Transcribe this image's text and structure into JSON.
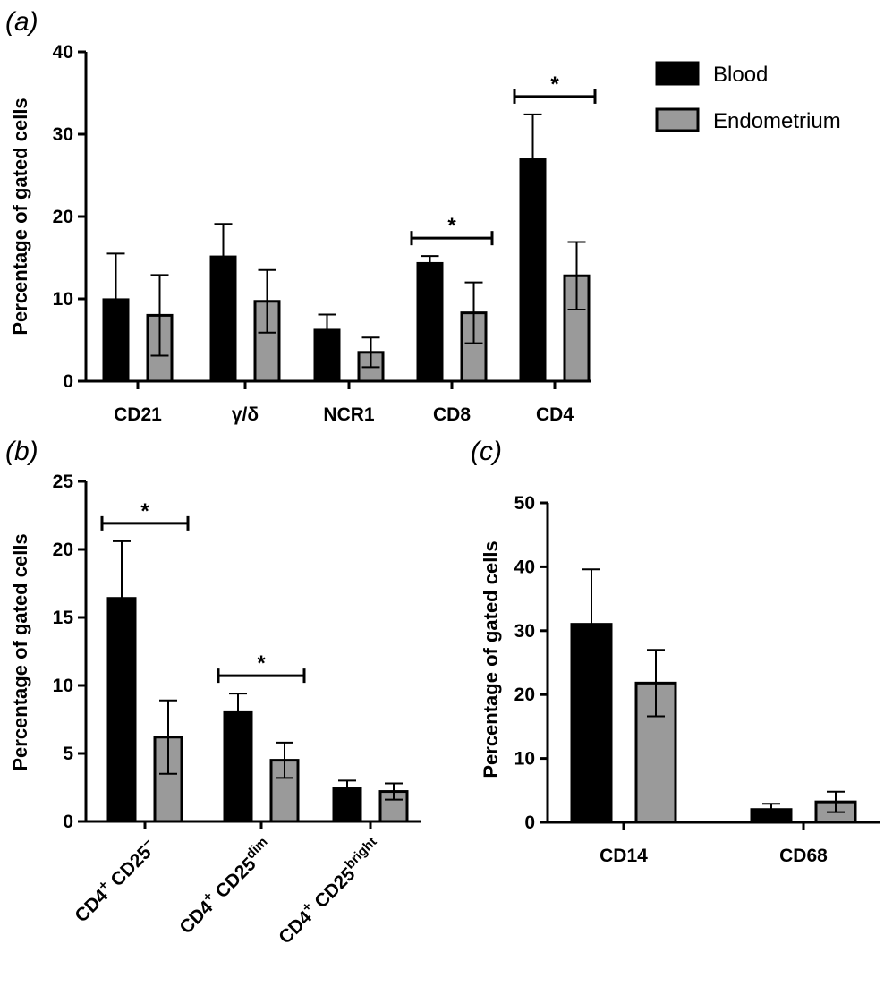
{
  "colors": {
    "blood": "#000000",
    "endometrium": "#9a9a9a",
    "axis": "#000000"
  },
  "legend": {
    "blood": "Blood",
    "endometrium": "Endometrium",
    "placement": "top-right"
  },
  "chart_data": [
    {
      "panel": "(a)",
      "type": "bar",
      "ylabel": "Percentage of gated cells",
      "ylim": [
        0,
        40
      ],
      "yticks": [
        "0",
        "10",
        "20",
        "30",
        "40"
      ],
      "categories": [
        "CD21",
        "γ/δ",
        "NCR1",
        "CD8",
        "CD4"
      ],
      "series": [
        {
          "name": "Blood",
          "values": [
            9.9,
            15.1,
            6.2,
            14.3,
            26.9
          ],
          "errors": [
            5.6,
            4.0,
            1.9,
            0.9,
            5.5
          ]
        },
        {
          "name": "Endometrium",
          "values": [
            8.0,
            9.7,
            3.5,
            8.3,
            12.8
          ],
          "errors": [
            4.9,
            3.8,
            1.8,
            3.7,
            4.1
          ]
        }
      ],
      "significance": [
        {
          "category_index": 3,
          "label": "*"
        },
        {
          "category_index": 4,
          "label": "*"
        }
      ],
      "grid": false
    },
    {
      "panel": "(b)",
      "type": "bar",
      "ylabel": "Percentage of gated cells",
      "ylim": [
        0,
        25
      ],
      "yticks": [
        "0",
        "5",
        "10",
        "15",
        "20",
        "25"
      ],
      "categories": [
        {
          "base": "CD4",
          "sup1": "+",
          "mid": " CD25",
          "sup2": "–"
        },
        {
          "base": "CD4",
          "sup1": "+",
          "mid": " CD25",
          "sup2": "dim"
        },
        {
          "base": "CD4",
          "sup1": "+",
          "mid": " CD25",
          "sup2": "bright"
        }
      ],
      "series": [
        {
          "name": "Blood",
          "values": [
            16.4,
            8.0,
            2.4
          ],
          "errors": [
            4.2,
            1.4,
            0.6
          ]
        },
        {
          "name": "Endometrium",
          "values": [
            6.2,
            4.5,
            2.2
          ],
          "errors": [
            2.7,
            1.3,
            0.6
          ],
          "errors_both_sides": true
        }
      ],
      "significance": [
        {
          "category_index": 0,
          "label": "*"
        },
        {
          "category_index": 1,
          "label": "*"
        }
      ],
      "grid": false
    },
    {
      "panel": "(c)",
      "type": "bar",
      "ylabel": "Percentage of gated cells",
      "ylim": [
        0,
        50
      ],
      "yticks": [
        "0",
        "10",
        "20",
        "30",
        "40",
        "50"
      ],
      "categories": [
        "CD14",
        "CD68"
      ],
      "series": [
        {
          "name": "Blood",
          "values": [
            31.0,
            2.0
          ],
          "errors": [
            8.6,
            0.9
          ]
        },
        {
          "name": "Endometrium",
          "values": [
            21.8,
            3.2
          ],
          "errors": [
            5.2,
            1.6
          ]
        }
      ],
      "significance": [],
      "grid": false
    }
  ]
}
